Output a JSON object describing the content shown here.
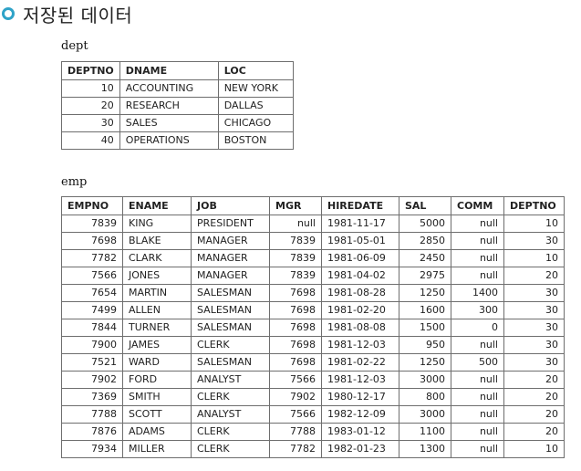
{
  "heading": "저장된 데이터",
  "dept": {
    "caption": "dept",
    "columns": [
      "DEPTNO",
      "DNAME",
      "LOC"
    ],
    "rows": [
      [
        "10",
        "ACCOUNTING",
        "NEW YORK"
      ],
      [
        "20",
        "RESEARCH",
        "DALLAS"
      ],
      [
        "30",
        "SALES",
        "CHICAGO"
      ],
      [
        "40",
        "OPERATIONS",
        "BOSTON"
      ]
    ]
  },
  "emp": {
    "caption": "emp",
    "columns": [
      "EMPNO",
      "ENAME",
      "JOB",
      "MGR",
      "HIREDATE",
      "SAL",
      "COMM",
      "DEPTNO"
    ],
    "rows": [
      [
        "7839",
        "KING",
        "PRESIDENT",
        "null",
        "1981-11-17",
        "5000",
        "null",
        "10"
      ],
      [
        "7698",
        "BLAKE",
        "MANAGER",
        "7839",
        "1981-05-01",
        "2850",
        "null",
        "30"
      ],
      [
        "7782",
        "CLARK",
        "MANAGER",
        "7839",
        "1981-06-09",
        "2450",
        "null",
        "10"
      ],
      [
        "7566",
        "JONES",
        "MANAGER",
        "7839",
        "1981-04-02",
        "2975",
        "null",
        "20"
      ],
      [
        "7654",
        "MARTIN",
        "SALESMAN",
        "7698",
        "1981-08-28",
        "1250",
        "1400",
        "30"
      ],
      [
        "7499",
        "ALLEN",
        "SALESMAN",
        "7698",
        "1981-02-20",
        "1600",
        "300",
        "30"
      ],
      [
        "7844",
        "TURNER",
        "SALESMAN",
        "7698",
        "1981-08-08",
        "1500",
        "0",
        "30"
      ],
      [
        "7900",
        "JAMES",
        "CLERK",
        "7698",
        "1981-12-03",
        "950",
        "null",
        "30"
      ],
      [
        "7521",
        "WARD",
        "SALESMAN",
        "7698",
        "1981-02-22",
        "1250",
        "500",
        "30"
      ],
      [
        "7902",
        "FORD",
        "ANALYST",
        "7566",
        "1981-12-03",
        "3000",
        "null",
        "20"
      ],
      [
        "7369",
        "SMITH",
        "CLERK",
        "7902",
        "1980-12-17",
        "800",
        "null",
        "20"
      ],
      [
        "7788",
        "SCOTT",
        "ANALYST",
        "7566",
        "1982-12-09",
        "3000",
        "null",
        "20"
      ],
      [
        "7876",
        "ADAMS",
        "CLERK",
        "7788",
        "1983-01-12",
        "1100",
        "null",
        "20"
      ],
      [
        "7934",
        "MILLER",
        "CLERK",
        "7782",
        "1982-01-23",
        "1300",
        "null",
        "10"
      ]
    ]
  },
  "colors": {
    "bullet": "#2fa3c8",
    "border": "#6e6e6e"
  },
  "icons": {
    "heading_bullet": "circle-bullet-icon"
  }
}
